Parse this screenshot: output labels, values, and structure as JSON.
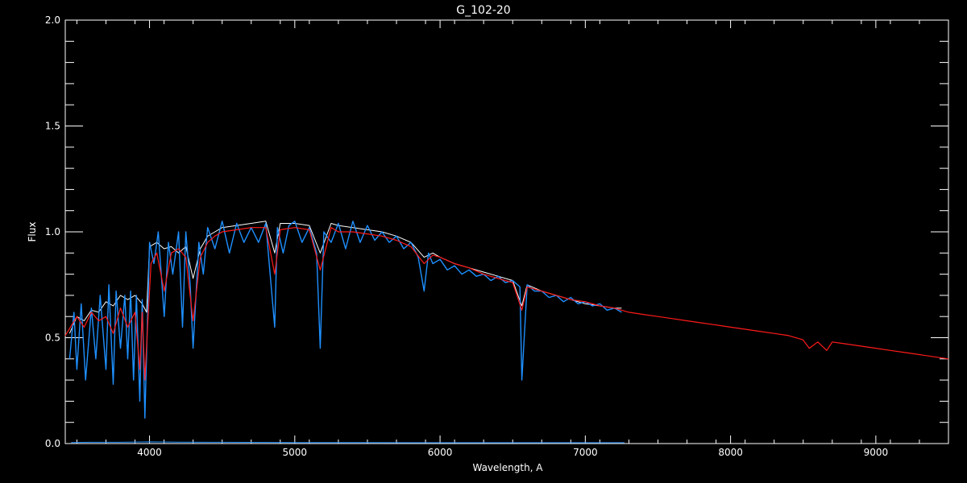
{
  "chart_data": {
    "type": "line",
    "title": "G_102-20",
    "xlabel": "Wavelength, A",
    "ylabel": "Flux",
    "xlim": [
      3420,
      9500
    ],
    "ylim": [
      0.0,
      2.0
    ],
    "xticks": [
      4000,
      5000,
      6000,
      7000,
      8000,
      9000
    ],
    "yticks": [
      0.0,
      0.5,
      1.0,
      1.5,
      2.0
    ],
    "ytick_labels": [
      "0.0",
      "0.5",
      "1.0",
      "1.5",
      "2.0"
    ],
    "grid": false,
    "colors": {
      "background": "#000000",
      "axes": "#ffffff",
      "observed": "#ffffff",
      "observed_highres": "#1e90ff",
      "model": "#ff1a1a",
      "error": "#1e90ff"
    },
    "series": [
      {
        "style": "observed",
        "x": [
          3450,
          3500,
          3550,
          3600,
          3650,
          3700,
          3750,
          3800,
          3850,
          3900,
          3950,
          3980,
          4000,
          4050,
          4100,
          4150,
          4200,
          4250,
          4300,
          4350,
          4400,
          4450,
          4500,
          4600,
          4700,
          4800,
          4862,
          4900,
          5000,
          5100,
          5175,
          5250,
          5300,
          5400,
          5500,
          5600,
          5700,
          5800,
          5890,
          5950,
          6000,
          6100,
          6200,
          6300,
          6400,
          6500,
          6563,
          6600,
          6700,
          6800,
          6900,
          7000,
          7100,
          7200,
          7250
        ],
        "y": [
          0.52,
          0.6,
          0.58,
          0.63,
          0.62,
          0.67,
          0.65,
          0.7,
          0.68,
          0.7,
          0.66,
          0.62,
          0.93,
          0.95,
          0.92,
          0.93,
          0.9,
          0.93,
          0.78,
          0.92,
          0.98,
          1.0,
          1.02,
          1.03,
          1.04,
          1.05,
          0.9,
          1.04,
          1.04,
          1.03,
          0.9,
          1.04,
          1.03,
          1.02,
          1.01,
          1.0,
          0.98,
          0.95,
          0.88,
          0.9,
          0.88,
          0.85,
          0.83,
          0.81,
          0.79,
          0.77,
          0.65,
          0.75,
          0.72,
          0.7,
          0.68,
          0.66,
          0.65,
          0.64,
          0.64
        ]
      },
      {
        "style": "observed_highres",
        "x": [
          3450,
          3480,
          3500,
          3530,
          3560,
          3600,
          3630,
          3660,
          3700,
          3720,
          3750,
          3770,
          3800,
          3830,
          3850,
          3870,
          3890,
          3910,
          3933,
          3950,
          3968,
          3985,
          4000,
          4030,
          4060,
          4101,
          4130,
          4160,
          4200,
          4227,
          4250,
          4280,
          4300,
          4340,
          4370,
          4400,
          4450,
          4500,
          4550,
          4600,
          4650,
          4700,
          4750,
          4800,
          4862,
          4880,
          4920,
          4960,
          5000,
          5050,
          5100,
          5150,
          5175,
          5200,
          5250,
          5300,
          5350,
          5400,
          5450,
          5500,
          5550,
          5600,
          5650,
          5700,
          5750,
          5800,
          5850,
          5890,
          5920,
          5950,
          6000,
          6050,
          6100,
          6150,
          6200,
          6250,
          6300,
          6350,
          6400,
          6450,
          6500,
          6550,
          6563,
          6600,
          6650,
          6700,
          6750,
          6800,
          6850,
          6900,
          6950,
          7000,
          7050,
          7100,
          7150,
          7200,
          7250
        ],
        "y": [
          0.4,
          0.62,
          0.35,
          0.66,
          0.3,
          0.64,
          0.4,
          0.7,
          0.35,
          0.75,
          0.28,
          0.72,
          0.45,
          0.7,
          0.4,
          0.72,
          0.3,
          0.7,
          0.2,
          0.68,
          0.12,
          0.55,
          0.95,
          0.85,
          1.0,
          0.6,
          0.95,
          0.8,
          1.0,
          0.55,
          1.0,
          0.75,
          0.45,
          0.95,
          0.8,
          1.02,
          0.92,
          1.05,
          0.9,
          1.04,
          0.95,
          1.02,
          0.95,
          1.04,
          0.55,
          1.02,
          0.9,
          1.03,
          1.05,
          0.95,
          1.02,
          0.9,
          0.45,
          1.0,
          0.95,
          1.04,
          0.92,
          1.05,
          0.95,
          1.03,
          0.96,
          1.0,
          0.95,
          0.98,
          0.92,
          0.95,
          0.88,
          0.72,
          0.9,
          0.85,
          0.87,
          0.82,
          0.84,
          0.8,
          0.82,
          0.79,
          0.8,
          0.77,
          0.79,
          0.76,
          0.77,
          0.74,
          0.3,
          0.75,
          0.72,
          0.72,
          0.69,
          0.7,
          0.67,
          0.69,
          0.66,
          0.67,
          0.65,
          0.66,
          0.63,
          0.64,
          0.62
        ]
      },
      {
        "style": "model",
        "x": [
          3420,
          3500,
          3550,
          3600,
          3650,
          3700,
          3750,
          3800,
          3850,
          3900,
          3933,
          3950,
          3968,
          3990,
          4010,
          4050,
          4101,
          4150,
          4200,
          4250,
          4300,
          4350,
          4400,
          4450,
          4500,
          4600,
          4700,
          4800,
          4862,
          4900,
          5000,
          5100,
          5175,
          5250,
          5300,
          5400,
          5500,
          5600,
          5700,
          5800,
          5890,
          5950,
          6000,
          6100,
          6200,
          6300,
          6400,
          6500,
          6563,
          6600,
          6700,
          6800,
          6900,
          7000,
          7100,
          7200,
          7300,
          7400,
          7500,
          7600,
          7700,
          7800,
          7900,
          8000,
          8100,
          8200,
          8300,
          8400,
          8498,
          8542,
          8600,
          8662,
          8700,
          8800,
          8900,
          9000,
          9100,
          9200,
          9300,
          9400,
          9500
        ],
        "y": [
          0.51,
          0.6,
          0.55,
          0.62,
          0.58,
          0.6,
          0.52,
          0.64,
          0.55,
          0.62,
          0.35,
          0.62,
          0.3,
          0.6,
          0.85,
          0.9,
          0.72,
          0.9,
          0.92,
          0.88,
          0.58,
          0.88,
          0.95,
          0.98,
          1.0,
          1.01,
          1.02,
          1.02,
          0.8,
          1.01,
          1.02,
          1.01,
          0.82,
          1.02,
          1.0,
          1.0,
          0.99,
          0.98,
          0.96,
          0.93,
          0.85,
          0.89,
          0.88,
          0.85,
          0.83,
          0.8,
          0.78,
          0.76,
          0.63,
          0.74,
          0.72,
          0.7,
          0.68,
          0.67,
          0.65,
          0.64,
          0.62,
          0.61,
          0.6,
          0.59,
          0.58,
          0.57,
          0.56,
          0.55,
          0.54,
          0.53,
          0.52,
          0.51,
          0.49,
          0.45,
          0.48,
          0.44,
          0.48,
          0.47,
          0.46,
          0.45,
          0.44,
          0.43,
          0.42,
          0.41,
          0.4
        ]
      },
      {
        "style": "error",
        "x": [
          3460,
          3600,
          3800,
          4000,
          4200,
          4500,
          5000,
          5500,
          6000,
          6500,
          7000,
          7270
        ],
        "y": [
          0.005,
          0.006,
          0.006,
          0.008,
          0.007,
          0.006,
          0.005,
          0.005,
          0.004,
          0.004,
          0.004,
          0.004
        ]
      }
    ]
  }
}
